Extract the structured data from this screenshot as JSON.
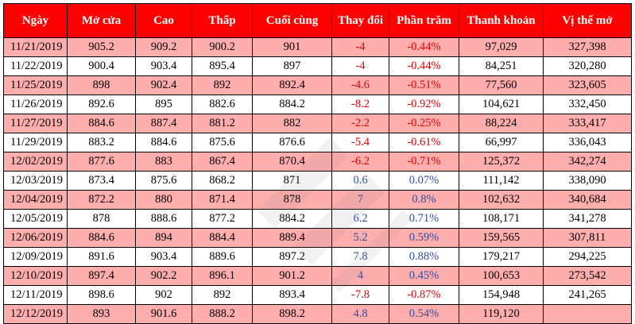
{
  "headers": [
    "Ngày",
    "Mở cửa",
    "Cao",
    "Thấp",
    "Cuối cùng",
    "Thay đổi",
    "Phần trăm",
    "Thanh khoản",
    "Vị thế mở"
  ],
  "rows": [
    {
      "date": "11/21/2019",
      "open": "905.2",
      "high": "909.2",
      "low": "900.2",
      "last": "901",
      "change": "-4",
      "pct": "-0.44%",
      "volume": "97,029",
      "oi": "327,398",
      "dir": "neg"
    },
    {
      "date": "11/22/2019",
      "open": "900.4",
      "high": "903.4",
      "low": "895.4",
      "last": "897",
      "change": "-4",
      "pct": "-0.44%",
      "volume": "84,251",
      "oi": "320,280",
      "dir": "neg"
    },
    {
      "date": "11/25/2019",
      "open": "898",
      "high": "902.4",
      "low": "892",
      "last": "892.4",
      "change": "-4.6",
      "pct": "-0.51%",
      "volume": "77,560",
      "oi": "323,605",
      "dir": "neg"
    },
    {
      "date": "11/26/2019",
      "open": "892.6",
      "high": "895",
      "low": "882.6",
      "last": "884.2",
      "change": "-8.2",
      "pct": "-0.92%",
      "volume": "104,621",
      "oi": "332,450",
      "dir": "neg"
    },
    {
      "date": "11/27/2019",
      "open": "884.6",
      "high": "887.4",
      "low": "881.2",
      "last": "882",
      "change": "-2.2",
      "pct": "-0.25%",
      "volume": "88,224",
      "oi": "333,417",
      "dir": "neg"
    },
    {
      "date": "11/29/2019",
      "open": "883.2",
      "high": "884.6",
      "low": "875.6",
      "last": "876.6",
      "change": "-5.4",
      "pct": "-0.61%",
      "volume": "66,997",
      "oi": "336,043",
      "dir": "neg"
    },
    {
      "date": "12/02/2019",
      "open": "877.6",
      "high": "883",
      "low": "867.4",
      "last": "870.4",
      "change": "-6.2",
      "pct": "-0.71%",
      "volume": "125,372",
      "oi": "342,274",
      "dir": "neg"
    },
    {
      "date": "12/03/2019",
      "open": "873.4",
      "high": "875.6",
      "low": "868.2",
      "last": "871",
      "change": "0.6",
      "pct": "0.07%",
      "volume": "111,142",
      "oi": "338,090",
      "dir": "pos"
    },
    {
      "date": "12/04/2019",
      "open": "872.2",
      "high": "880",
      "low": "871.4",
      "last": "878",
      "change": "7",
      "pct": "0.8%",
      "volume": "102,632",
      "oi": "340,684",
      "dir": "pos"
    },
    {
      "date": "12/05/2019",
      "open": "878",
      "high": "888.6",
      "low": "877.2",
      "last": "884.2",
      "change": "6.2",
      "pct": "0.71%",
      "volume": "108,171",
      "oi": "341,278",
      "dir": "pos"
    },
    {
      "date": "12/06/2019",
      "open": "884.6",
      "high": "894",
      "low": "884.4",
      "last": "889.4",
      "change": "5.2",
      "pct": "0.59%",
      "volume": "159,565",
      "oi": "307,811",
      "dir": "pos"
    },
    {
      "date": "12/09/2019",
      "open": "891.6",
      "high": "903.4",
      "low": "889.6",
      "last": "897.2",
      "change": "7.8",
      "pct": "0.88%",
      "volume": "179,217",
      "oi": "294,225",
      "dir": "pos"
    },
    {
      "date": "12/10/2019",
      "open": "897.4",
      "high": "902.2",
      "low": "896.1",
      "last": "901.2",
      "change": "4",
      "pct": "0.45%",
      "volume": "100,653",
      "oi": "273,542",
      "dir": "pos"
    },
    {
      "date": "12/11/2019",
      "open": "898.6",
      "high": "902",
      "low": "892",
      "last": "893.4",
      "change": "-7.8",
      "pct": "-0.87%",
      "volume": "154,948",
      "oi": "241,265",
      "dir": "neg"
    },
    {
      "date": "12/12/2019",
      "open": "893",
      "high": "901.6",
      "low": "888.2",
      "last": "898.2",
      "change": "4.8",
      "pct": "0.54%",
      "volume": "119,120",
      "oi": "",
      "dir": "pos"
    }
  ],
  "colors": {
    "header_bg": "#ff0000",
    "header_text": "#ffffff",
    "row_pink": "#ffadad",
    "row_white": "#ffffff",
    "negative": "#e00000",
    "positive": "#2f4f9f"
  },
  "watermark_icon": "diagonal-stripes-watermark"
}
